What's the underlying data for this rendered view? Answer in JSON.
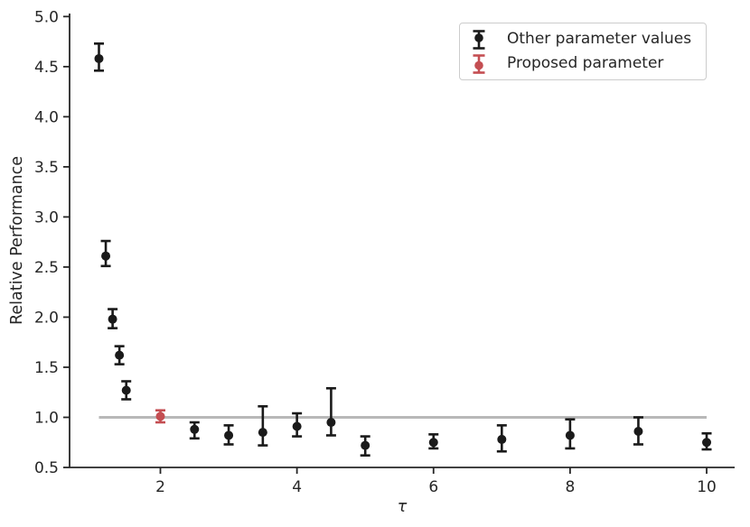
{
  "figure": {
    "background": "#ffffff",
    "axis_color": "#262626",
    "text_color": "#262626"
  },
  "chart_data": {
    "type": "scatter",
    "title": "",
    "xlabel": "τ",
    "ylabel": "Relative Performance",
    "xlim": [
      0.67,
      10.41
    ],
    "ylim": [
      0.5,
      5.03
    ],
    "x_ticks": [
      2,
      4,
      6,
      8,
      10
    ],
    "x_tick_labels": [
      "2",
      "4",
      "6",
      "8",
      "10"
    ],
    "y_ticks": [
      0.5,
      1.0,
      1.5,
      2.0,
      2.5,
      3.0,
      3.5,
      4.0,
      4.5,
      5.0
    ],
    "y_tick_labels": [
      "0.5",
      "1.0",
      "1.5",
      "2.0",
      "2.5",
      "3.0",
      "3.5",
      "4.0",
      "4.5",
      "5.0"
    ],
    "grid": false,
    "legend_position": "upper-right",
    "reference_line": {
      "y": 1.0,
      "x_start": 1.1,
      "x_end": 10.0,
      "color": "#b8b8b8"
    },
    "series": [
      {
        "name": "Other parameter values",
        "color": "#1a1a1a",
        "marker": "circle-errorbar",
        "points": [
          {
            "x": 1.1,
            "y": 4.58,
            "err_low": 4.46,
            "err_high": 4.73
          },
          {
            "x": 1.2,
            "y": 2.61,
            "err_low": 2.51,
            "err_high": 2.76
          },
          {
            "x": 1.3,
            "y": 1.98,
            "err_low": 1.89,
            "err_high": 2.08
          },
          {
            "x": 1.4,
            "y": 1.62,
            "err_low": 1.53,
            "err_high": 1.71
          },
          {
            "x": 1.5,
            "y": 1.27,
            "err_low": 1.18,
            "err_high": 1.36
          },
          {
            "x": 2.5,
            "y": 0.88,
            "err_low": 0.79,
            "err_high": 0.95
          },
          {
            "x": 3.0,
            "y": 0.82,
            "err_low": 0.73,
            "err_high": 0.92
          },
          {
            "x": 3.5,
            "y": 0.85,
            "err_low": 0.72,
            "err_high": 1.11
          },
          {
            "x": 4.0,
            "y": 0.91,
            "err_low": 0.81,
            "err_high": 1.04
          },
          {
            "x": 4.5,
            "y": 0.95,
            "err_low": 0.82,
            "err_high": 1.29
          },
          {
            "x": 5.0,
            "y": 0.72,
            "err_low": 0.62,
            "err_high": 0.81
          },
          {
            "x": 6.0,
            "y": 0.75,
            "err_low": 0.69,
            "err_high": 0.83
          },
          {
            "x": 7.0,
            "y": 0.78,
            "err_low": 0.66,
            "err_high": 0.92
          },
          {
            "x": 8.0,
            "y": 0.82,
            "err_low": 0.69,
            "err_high": 0.98
          },
          {
            "x": 9.0,
            "y": 0.86,
            "err_low": 0.73,
            "err_high": 1.0
          },
          {
            "x": 10.0,
            "y": 0.75,
            "err_low": 0.68,
            "err_high": 0.84
          }
        ]
      },
      {
        "name": "Proposed parameter",
        "color": "#c44e52",
        "marker": "circle-errorbar",
        "points": [
          {
            "x": 2.0,
            "y": 1.01,
            "err_low": 0.95,
            "err_high": 1.07
          }
        ]
      }
    ],
    "legend": {
      "entries": [
        {
          "label": "Other parameter values",
          "color": "#1a1a1a"
        },
        {
          "label": "Proposed parameter",
          "color": "#c44e52"
        }
      ]
    }
  }
}
